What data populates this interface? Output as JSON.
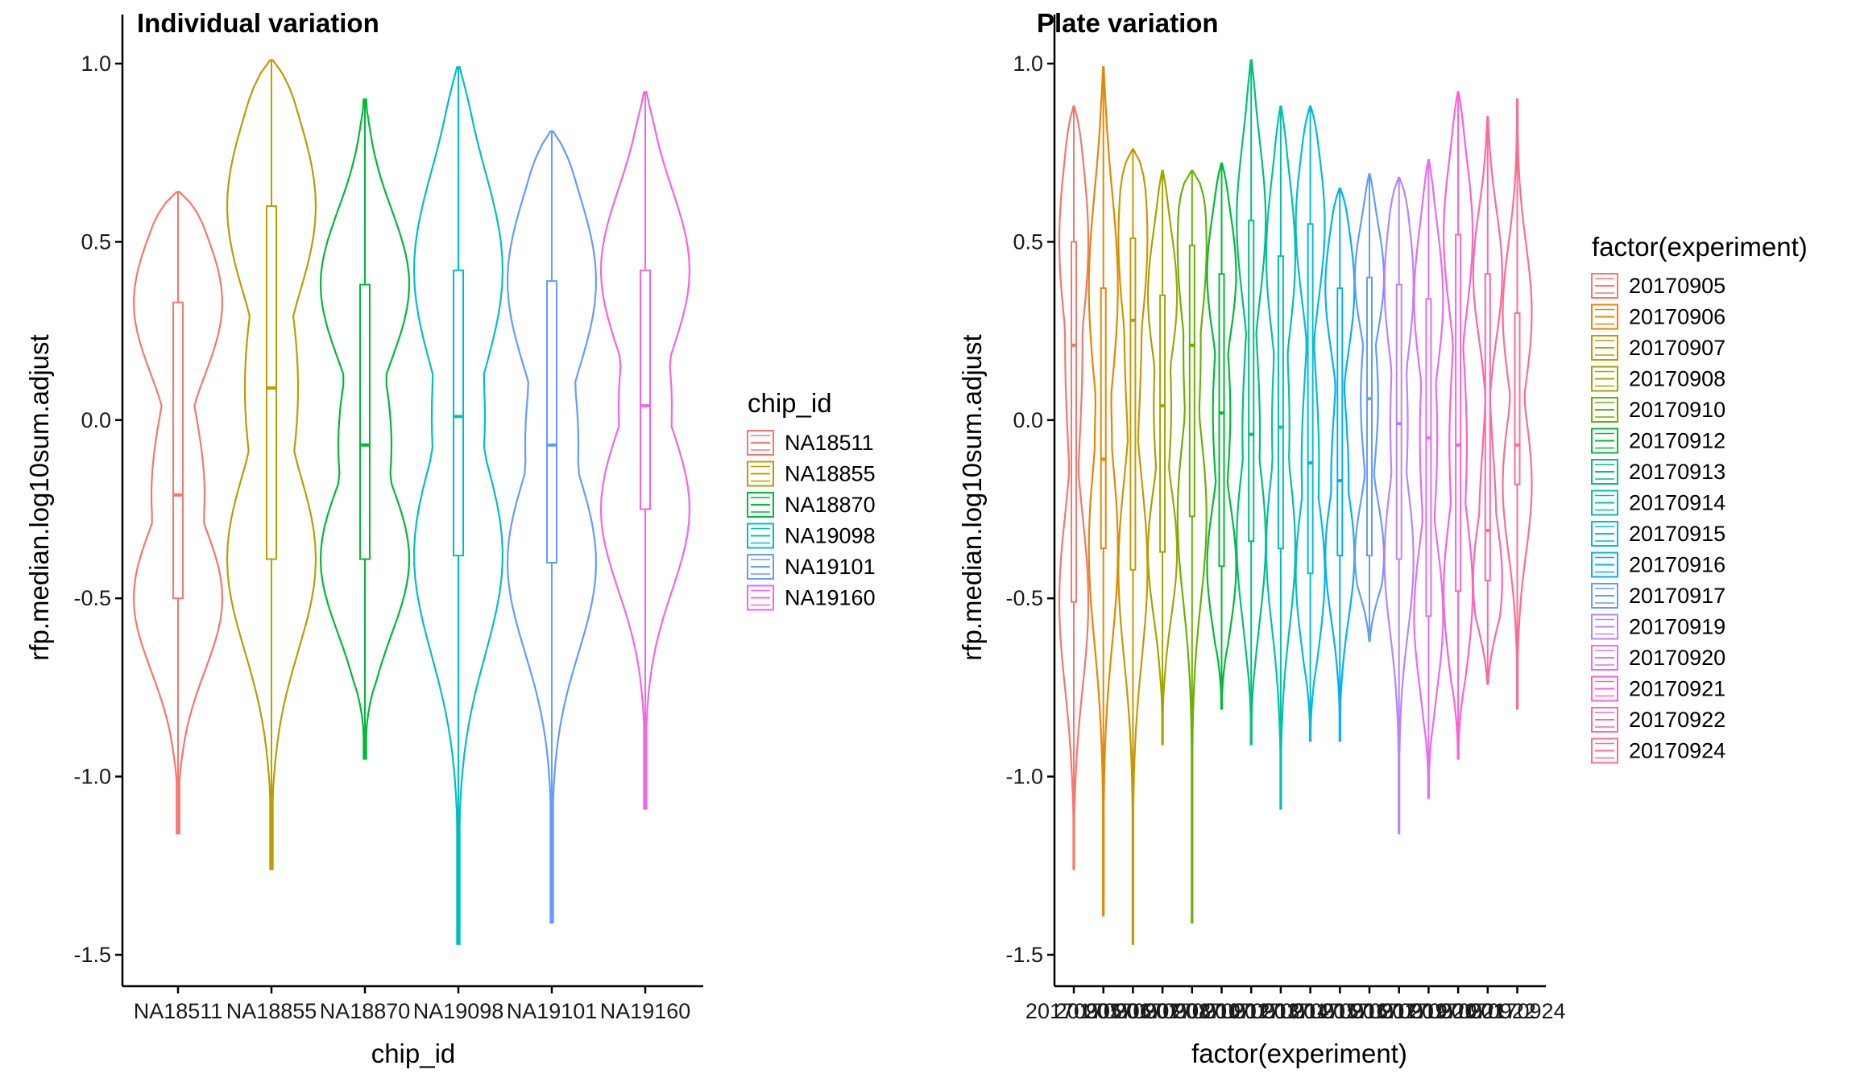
{
  "chart_data": [
    {
      "type": "violin",
      "title": "Individual variation",
      "xlabel": "chip_id",
      "ylabel": "rfp.median.log10sum.adjust",
      "ylim": [
        -1.58,
        1.02
      ],
      "yticks": [
        1.0,
        0.5,
        0.0,
        -0.5,
        -1.0,
        -1.5
      ],
      "ytick_labels": [
        "1.0",
        "0.5",
        "0.0",
        "-0.5",
        "-1.0",
        "-1.5"
      ],
      "legend_title": "chip_id",
      "legend_position": "right",
      "grid": false,
      "categories": [
        "NA18511",
        "NA18855",
        "NA18870",
        "NA19098",
        "NA19101",
        "NA19160"
      ],
      "series": [
        {
          "name": "NA18511",
          "color": "#F8766D",
          "min": -1.16,
          "q1": -0.5,
          "median": -0.21,
          "q3": 0.33,
          "max": 0.64
        },
        {
          "name": "NA18855",
          "color": "#B79F00",
          "min": -1.26,
          "q1": -0.39,
          "median": 0.09,
          "q3": 0.6,
          "max": 1.01
        },
        {
          "name": "NA18870",
          "color": "#00BA38",
          "min": -0.95,
          "q1": -0.39,
          "median": -0.07,
          "q3": 0.38,
          "max": 0.9
        },
        {
          "name": "NA19098",
          "color": "#00BFC4",
          "min": -1.47,
          "q1": -0.38,
          "median": 0.01,
          "q3": 0.42,
          "max": 0.99
        },
        {
          "name": "NA19101",
          "color": "#619CFF",
          "min": -1.41,
          "q1": -0.4,
          "median": -0.07,
          "q3": 0.39,
          "max": 0.81
        },
        {
          "name": "NA19160",
          "color": "#F564E3",
          "min": -1.09,
          "q1": -0.25,
          "median": 0.04,
          "q3": 0.42,
          "max": 0.92
        }
      ]
    },
    {
      "type": "violin",
      "title": "Plate variation",
      "xlabel": "factor(experiment)",
      "ylabel": "rfp.median.log10sum.adjust",
      "ylim": [
        -1.58,
        1.02
      ],
      "yticks": [
        1.0,
        0.5,
        0.0,
        -0.5,
        -1.0,
        -1.5
      ],
      "ytick_labels": [
        "1.0",
        "0.5",
        "0.0",
        "-0.5",
        "-1.0",
        "-1.5"
      ],
      "legend_title": "factor(experiment)",
      "legend_position": "right",
      "grid": false,
      "categories": [
        "20170905",
        "20170906",
        "20170907",
        "20170908",
        "20170910",
        "20170912",
        "20170913",
        "20170914",
        "20170915",
        "20170916",
        "20170917",
        "20170919",
        "20170920",
        "20170921",
        "20170922",
        "20170924"
      ],
      "series": [
        {
          "name": "20170905",
          "color": "#F8766D",
          "min": -1.26,
          "q1": -0.51,
          "median": 0.21,
          "q3": 0.5,
          "max": 0.88
        },
        {
          "name": "20170906",
          "color": "#E58700",
          "min": -1.39,
          "q1": -0.36,
          "median": -0.11,
          "q3": 0.37,
          "max": 0.99
        },
        {
          "name": "20170907",
          "color": "#C99800",
          "min": -1.47,
          "q1": -0.42,
          "median": 0.28,
          "q3": 0.51,
          "max": 0.76
        },
        {
          "name": "20170908",
          "color": "#A3A500",
          "min": -0.91,
          "q1": -0.37,
          "median": 0.04,
          "q3": 0.35,
          "max": 0.7
        },
        {
          "name": "20170910",
          "color": "#6BB100",
          "min": -1.41,
          "q1": -0.27,
          "median": 0.21,
          "q3": 0.49,
          "max": 0.7
        },
        {
          "name": "20170912",
          "color": "#00BA38",
          "min": -0.81,
          "q1": -0.41,
          "median": 0.02,
          "q3": 0.41,
          "max": 0.72
        },
        {
          "name": "20170913",
          "color": "#00BF7D",
          "min": -0.91,
          "q1": -0.34,
          "median": -0.04,
          "q3": 0.56,
          "max": 1.01
        },
        {
          "name": "20170914",
          "color": "#00C0AF",
          "min": -1.09,
          "q1": -0.36,
          "median": -0.02,
          "q3": 0.46,
          "max": 0.88
        },
        {
          "name": "20170915",
          "color": "#00BCD8",
          "min": -0.9,
          "q1": -0.43,
          "median": -0.12,
          "q3": 0.55,
          "max": 0.88
        },
        {
          "name": "20170916",
          "color": "#00B0F6",
          "min": -0.9,
          "q1": -0.38,
          "median": -0.17,
          "q3": 0.37,
          "max": 0.65
        },
        {
          "name": "20170917",
          "color": "#619CFF",
          "min": -0.62,
          "q1": -0.38,
          "median": 0.06,
          "q3": 0.4,
          "max": 0.69
        },
        {
          "name": "20170919",
          "color": "#B983FF",
          "min": -1.16,
          "q1": -0.39,
          "median": -0.01,
          "q3": 0.38,
          "max": 0.68
        },
        {
          "name": "20170920",
          "color": "#E76BF3",
          "min": -1.06,
          "q1": -0.55,
          "median": -0.05,
          "q3": 0.34,
          "max": 0.73
        },
        {
          "name": "20170921",
          "color": "#FD61D1",
          "min": -0.95,
          "q1": -0.48,
          "median": -0.07,
          "q3": 0.52,
          "max": 0.92
        },
        {
          "name": "20170922",
          "color": "#FF67A4",
          "min": -0.74,
          "q1": -0.45,
          "median": -0.31,
          "q3": 0.41,
          "max": 0.85
        },
        {
          "name": "20170924",
          "color": "#FF6C91",
          "min": -0.81,
          "q1": -0.18,
          "median": -0.07,
          "q3": 0.3,
          "max": 0.9
        }
      ]
    }
  ]
}
